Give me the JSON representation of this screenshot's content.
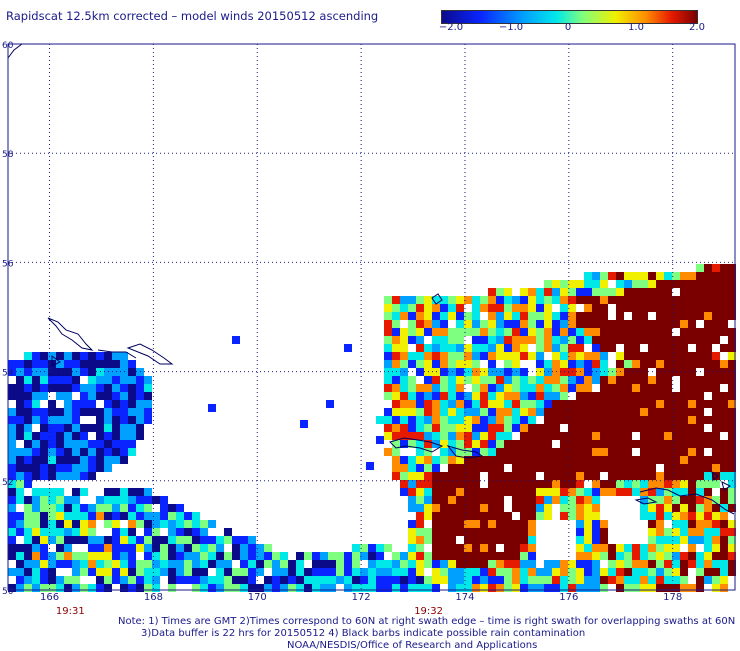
{
  "title": "Rapidscat 12.5km corrected – model winds 20150512 ascending",
  "colorbar": {
    "ticks": [
      "−2.0",
      "−1.0",
      "0",
      "1.0",
      "2.0"
    ],
    "range": [
      -2.0,
      2.0
    ]
  },
  "axes": {
    "lon_ticks": [
      "166",
      "168",
      "170",
      "172",
      "174",
      "176",
      "178"
    ],
    "lat_ticks": [
      "50",
      "52",
      "54",
      "56",
      "58",
      "60"
    ],
    "lon_range": [
      165.2,
      179.2
    ],
    "lat_range": [
      50,
      60
    ]
  },
  "times": [
    {
      "label": "19:31",
      "lon": 166.4
    },
    {
      "label": "19:32",
      "lon": 173.3
    }
  ],
  "notes": {
    "line1": "Note: 1) Times are GMT 2)Times correspond to 60N at right swath edge – time is right swath for overlapping swaths at 60N",
    "line2": "3)Data buffer is 22 hrs for 20150512 4) Black barbs indicate possible rain contamination",
    "line3": "NOAA/NESDIS/Office of Research and Applications"
  },
  "colors": {
    "text": "#1a1a8a",
    "time": "#8b0000",
    "coast": "#000060",
    "grid": "#1a1a8a"
  }
}
